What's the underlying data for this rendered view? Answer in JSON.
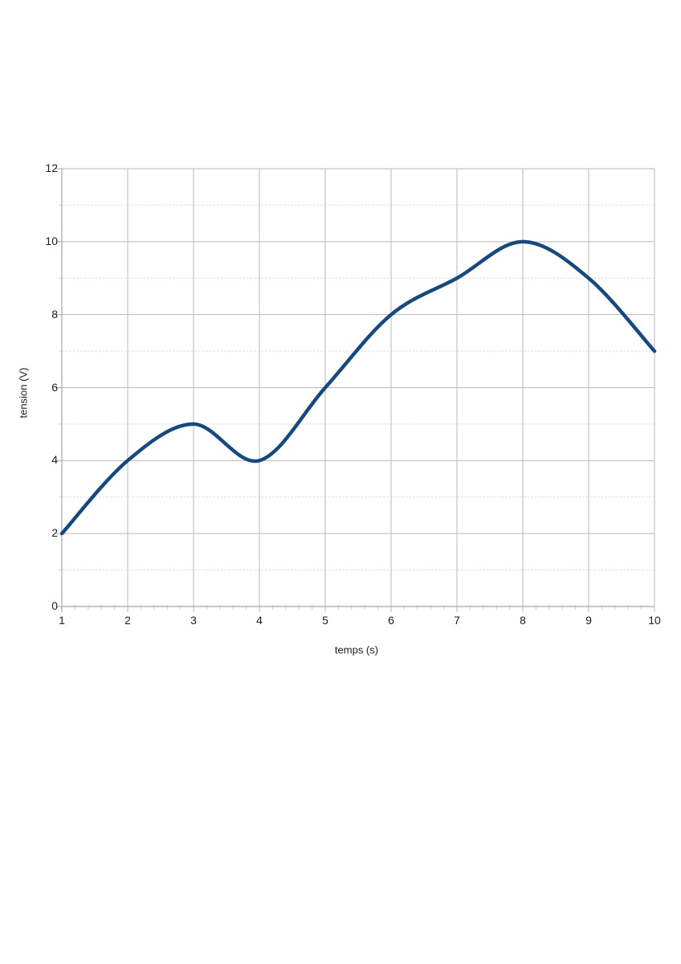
{
  "page": {
    "background_color": "#ffffff"
  },
  "chart_data": {
    "type": "line",
    "title": "",
    "xlabel": "temps (s)",
    "ylabel": "tension (V)",
    "x": [
      1,
      2,
      3,
      4,
      5,
      6,
      7,
      8,
      9,
      10
    ],
    "series": [
      {
        "name": "tension",
        "values": [
          2,
          4,
          5,
          4,
          6,
          8,
          9,
          10,
          9,
          7
        ]
      }
    ],
    "xlim": [
      1,
      10
    ],
    "ylim": [
      0,
      12
    ],
    "x_tick_labels": [
      "1",
      "2",
      "3",
      "4",
      "5",
      "6",
      "7",
      "8",
      "9",
      "10"
    ],
    "y_major_ticks": [
      0,
      2,
      4,
      6,
      8,
      10,
      12
    ],
    "y_minor_ticks": [
      1,
      3,
      5,
      7,
      9,
      11
    ],
    "smooth": true,
    "legend": "none",
    "grid": "vertical-solid, horizontal-major-solid, horizontal-minor-dashed",
    "line_color": "#17497d",
    "major_grid_color": "#b9b9b9",
    "minor_grid_color": "#dcdcdc",
    "axis_color": "#a8a8a8",
    "minor_axis_tick_color": "#cfcfcf",
    "label_color": "#1d1d1d"
  }
}
